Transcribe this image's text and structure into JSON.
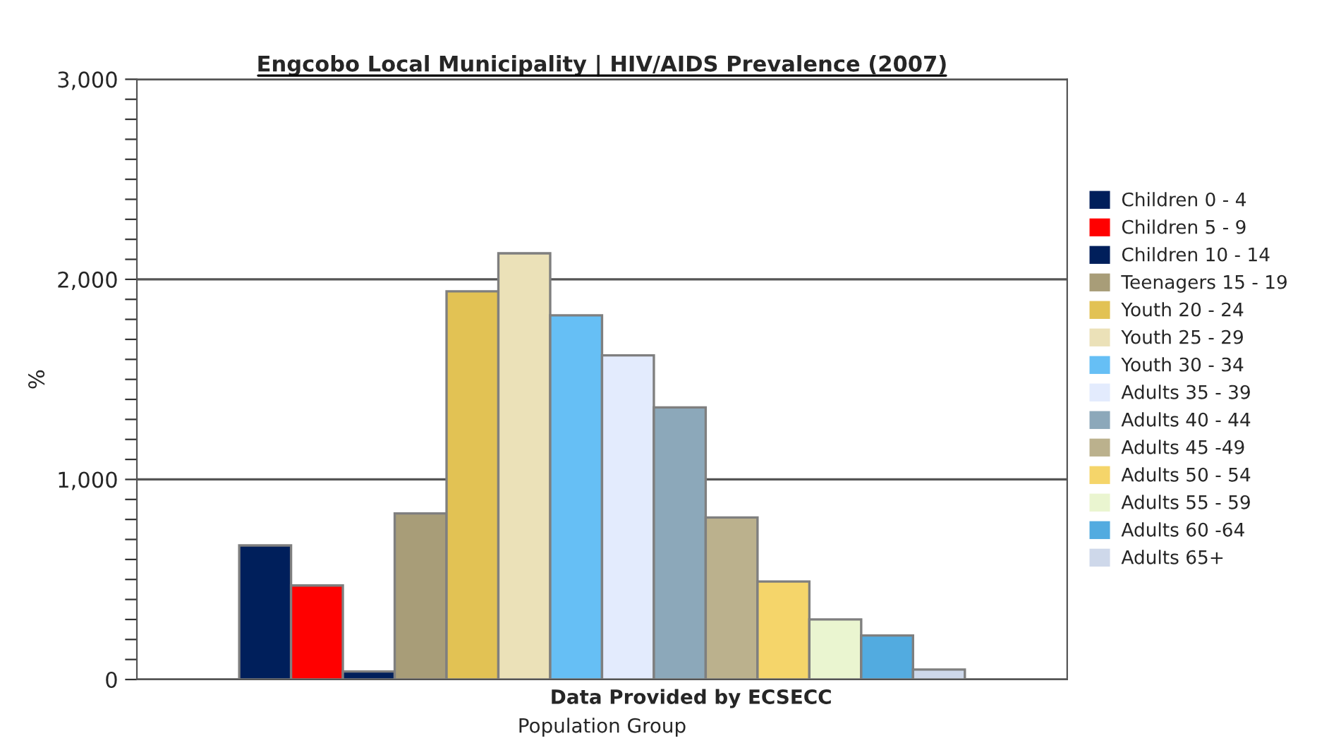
{
  "chart_data": {
    "type": "bar",
    "title": "Engcobo Local Municipality | HIV/AIDS Prevalence (2007)",
    "xlabel": "Population Group",
    "ylabel": "%",
    "annotations": [
      "Data Provided by ECSECC"
    ],
    "categories": [
      null
    ],
    "series": [
      {
        "name": "Children 0 - 4",
        "color": "#001f5b",
        "values": [
          670
        ]
      },
      {
        "name": "Children 5 - 9",
        "color": "#ff0000",
        "values": [
          470
        ]
      },
      {
        "name": "Children 10 - 14",
        "color": "#001f5b",
        "values": [
          40
        ]
      },
      {
        "name": "Teenagers 15 - 19",
        "color": "#a89d78",
        "values": [
          830
        ]
      },
      {
        "name": "Youth 20 - 24",
        "color": "#e2c254",
        "values": [
          1940
        ]
      },
      {
        "name": "Youth 25 - 29",
        "color": "#ebe1b8",
        "values": [
          2130
        ]
      },
      {
        "name": "Youth 30 - 34",
        "color": "#66bff5",
        "values": [
          1820
        ]
      },
      {
        "name": "Adults 35 - 39",
        "color": "#e3ebfd",
        "values": [
          1620
        ]
      },
      {
        "name": "Adults 40 - 44",
        "color": "#8ca8ba",
        "values": [
          1360
        ]
      },
      {
        "name": "Adults 45 -49",
        "color": "#bbb18d",
        "values": [
          810
        ]
      },
      {
        "name": "Adults 50 - 54",
        "color": "#f5d56a",
        "values": [
          490
        ]
      },
      {
        "name": "Adults 55 - 59",
        "color": "#eaf5d0",
        "values": [
          300
        ]
      },
      {
        "name": "Adults 60 -64",
        "color": "#52abe0",
        "values": [
          220
        ]
      },
      {
        "name": "Adults 65+",
        "color": "#ced8ea",
        "values": [
          50
        ]
      }
    ],
    "ylim": [
      0,
      3000
    ],
    "yticks": [
      {
        "value": 0,
        "label": "0"
      },
      {
        "value": 100,
        "label": null
      },
      {
        "value": 200,
        "label": null
      },
      {
        "value": 300,
        "label": null
      },
      {
        "value": 400,
        "label": null
      },
      {
        "value": 500,
        "label": null
      },
      {
        "value": 600,
        "label": null
      },
      {
        "value": 700,
        "label": null
      },
      {
        "value": 800,
        "label": null
      },
      {
        "value": 900,
        "label": null
      },
      {
        "value": 1000,
        "label": "1,000"
      },
      {
        "value": 1100,
        "label": null
      },
      {
        "value": 1200,
        "label": null
      },
      {
        "value": 1300,
        "label": null
      },
      {
        "value": 1400,
        "label": null
      },
      {
        "value": 1500,
        "label": null
      },
      {
        "value": 1600,
        "label": null
      },
      {
        "value": 1700,
        "label": null
      },
      {
        "value": 1800,
        "label": null
      },
      {
        "value": 1900,
        "label": null
      },
      {
        "value": 2000,
        "label": "2,000"
      },
      {
        "value": 2100,
        "label": null
      },
      {
        "value": 2200,
        "label": null
      },
      {
        "value": 2300,
        "label": null
      },
      {
        "value": 2400,
        "label": null
      },
      {
        "value": 2500,
        "label": null
      },
      {
        "value": 2600,
        "label": null
      },
      {
        "value": 2700,
        "label": null
      },
      {
        "value": 2800,
        "label": null
      },
      {
        "value": 2900,
        "label": null
      },
      {
        "value": 3000,
        "label": "3,000"
      }
    ],
    "grid": "y",
    "legend": "right"
  }
}
